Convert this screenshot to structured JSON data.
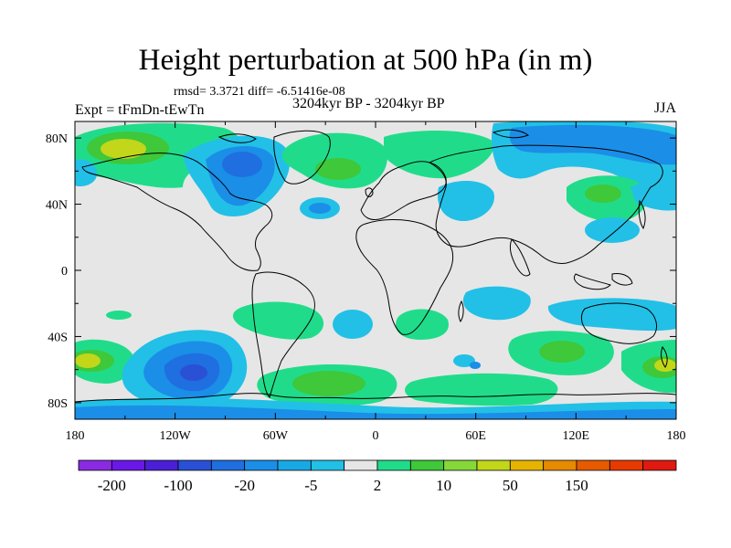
{
  "title": "Height perturbation at 500 hPa (in m)",
  "stats": "rmsd= 3.3721  diff= -6.51416e-08",
  "expt": "Expt = tFmDn-tEwTn",
  "period": "3204kyr BP - 3204kyr BP",
  "season": "JJA",
  "lat_ticks": [
    "80N",
    "40N",
    "0",
    "40S",
    "80S"
  ],
  "lon_ticks": [
    "180",
    "120W",
    "60W",
    "0",
    "60E",
    "120E",
    "180"
  ],
  "colorbar": {
    "colors": [
      "#8a2be2",
      "#6a18e6",
      "#4a1fd6",
      "#2a50d6",
      "#1f6fe0",
      "#1b8ee8",
      "#19a8e6",
      "#22c0e6",
      "#e6e6e6",
      "#20dc8a",
      "#3ec83a",
      "#86d83a",
      "#c2d61a",
      "#e6b400",
      "#e68a00",
      "#e65a00",
      "#e63a00",
      "#e01a10"
    ],
    "labels": [
      "-200",
      "-100",
      "-20",
      "-5",
      "2",
      "10",
      "50",
      "150"
    ]
  },
  "colors": {
    "neutral": "#e6e6e6",
    "light_blue": "#22c0e6",
    "mid_blue": "#1b8ee8",
    "blue": "#1f6fe0",
    "dark_blue": "#2a50d6",
    "teal_green": "#20dc8a",
    "green": "#3ec83a",
    "yellow_green": "#c2d61a"
  }
}
